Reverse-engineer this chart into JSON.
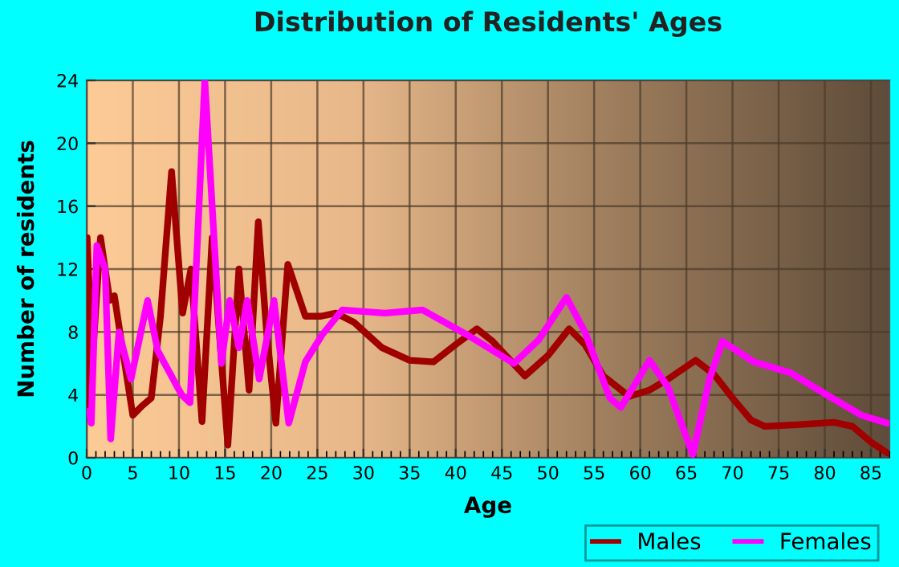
{
  "chart_data": {
    "type": "line",
    "title": "Distribution of Residents' Ages",
    "xlabel": "Age",
    "ylabel": "Number of residents",
    "xlim": [
      0,
      87
    ],
    "xticks": [
      0,
      5,
      10,
      15,
      20,
      25,
      30,
      35,
      40,
      45,
      50,
      55,
      60,
      65,
      70,
      75,
      80,
      85
    ],
    "ylim": [
      0,
      24
    ],
    "yticks": [
      0,
      4,
      8,
      12,
      16,
      20,
      24
    ],
    "grid": true,
    "legend": "bottom right",
    "marker": "none",
    "line_style": "solid",
    "series": [
      {
        "name": "Males",
        "color": "#a00000",
        "x": [
          0,
          0.05,
          0.6,
          1.5,
          2.5,
          3,
          3.6,
          5,
          6,
          7,
          8,
          9.2,
          10.4,
          11.3,
          12.5,
          13.6,
          15.3,
          16.5,
          17.6,
          18.6,
          19.5,
          20.5,
          21.8,
          23.7,
          25.4,
          27,
          29,
          32,
          35,
          37.6,
          40,
          42.3,
          44,
          47.5,
          50,
          52.3,
          54,
          56,
          58.8,
          61,
          63,
          66,
          68,
          70,
          72,
          73.5,
          77,
          81,
          83,
          85,
          86.8
        ],
        "values": [
          3,
          14,
          6,
          14,
          10,
          10.3,
          8,
          2.7,
          3.3,
          3.8,
          9,
          18.2,
          9.2,
          12,
          2.3,
          14,
          0.8,
          12,
          4.3,
          15,
          8,
          2.2,
          12.3,
          9,
          9,
          9.2,
          8.6,
          7,
          6.2,
          6.1,
          7.2,
          8.2,
          7.4,
          5.2,
          6.5,
          8.2,
          7.2,
          5.2,
          3.9,
          4.3,
          5,
          6.2,
          5.3,
          3.8,
          2.4,
          2,
          2.1,
          2.25,
          2,
          1,
          0.3
        ]
      },
      {
        "name": "Females",
        "color": "#ff00ff",
        "x": [
          0.3,
          0.5,
          1.1,
          2,
          2.6,
          3.5,
          4.8,
          6.6,
          7.7,
          10.3,
          11.2,
          12.8,
          14.6,
          15.5,
          16.5,
          17.4,
          18.7,
          20.3,
          21.9,
          23.7,
          25.5,
          27.7,
          32.3,
          36.4,
          41,
          46.3,
          49,
          52,
          54,
          56.7,
          57.9,
          61,
          63,
          65.7,
          67.5,
          68.9,
          72.3,
          76.3,
          80.5,
          84,
          86.8
        ],
        "values": [
          3,
          2.2,
          13.5,
          12,
          1.2,
          8,
          5,
          10,
          6.8,
          4,
          3.5,
          24,
          6,
          10,
          7,
          10,
          5,
          10,
          2.2,
          6.1,
          7.8,
          9.4,
          9.2,
          9.4,
          7.9,
          6,
          7.5,
          10.2,
          8,
          3.8,
          3.2,
          6.2,
          4.5,
          0.2,
          5,
          7.4,
          6.1,
          5.4,
          3.9,
          2.7,
          2.2
        ]
      }
    ]
  }
}
